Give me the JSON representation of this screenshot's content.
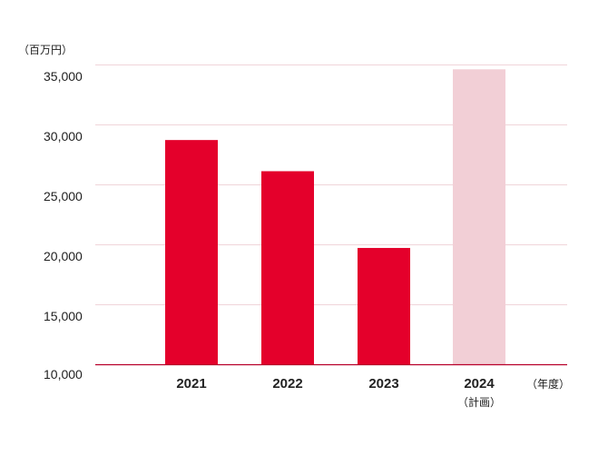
{
  "chart_data": {
    "type": "bar",
    "y_unit_label": "（百万円）",
    "x_unit_label": "（年度）",
    "categories": [
      "2021",
      "2022",
      "2023",
      "2024"
    ],
    "category_sublabels": [
      "",
      "",
      "",
      "（計画）"
    ],
    "values": [
      28700,
      26100,
      19700,
      34600
    ],
    "plan_flags": [
      false,
      false,
      false,
      true
    ],
    "ylim": [
      10000,
      35000
    ],
    "yticks": [
      10000,
      15000,
      20000,
      25000,
      30000,
      35000
    ],
    "ytick_labels": [
      "10,000",
      "15,000",
      "20,000",
      "25,000",
      "30,000",
      "35,000"
    ],
    "grid": true,
    "colors": {
      "actual": "#e4002b",
      "plan": "#f2cfd6",
      "grid": "#f0d5da",
      "baseline": "#b8002a"
    }
  }
}
